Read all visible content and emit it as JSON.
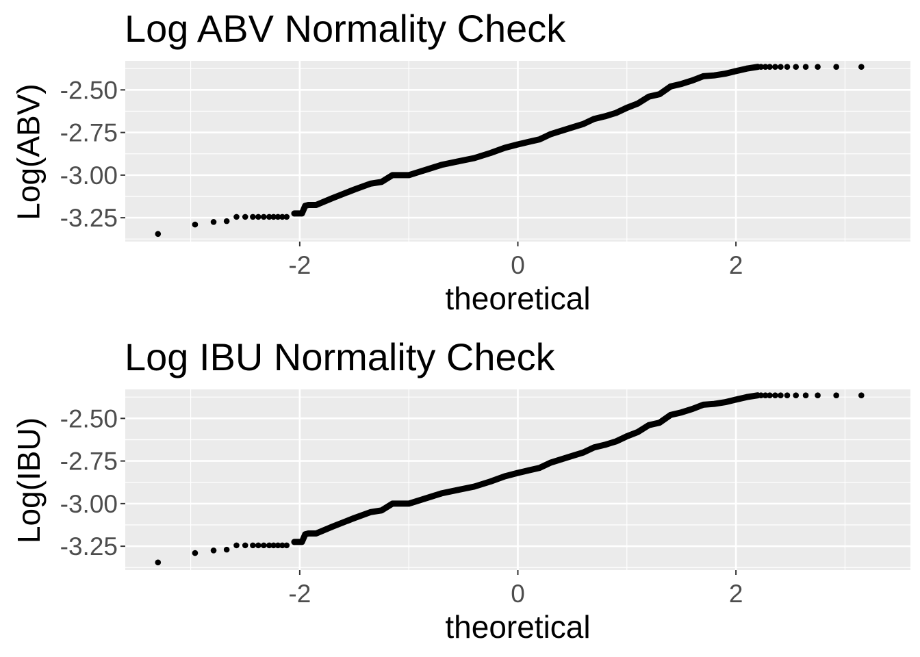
{
  "chart_data": [
    {
      "type": "scatter",
      "title": "Log ABV Normality Check",
      "xlabel": "theoretical",
      "ylabel": "Log(ABV)",
      "xlim": [
        -3.6,
        3.6
      ],
      "ylim": [
        -3.39,
        -2.33
      ],
      "x_major_ticks": [
        -2,
        0,
        2
      ],
      "x_tick_labels": [
        "-2",
        "0",
        "2"
      ],
      "x_minor_ticks": [
        -3,
        -1,
        1,
        3
      ],
      "y_major_ticks": [
        -2.5,
        -2.75,
        -3.0,
        -3.25
      ],
      "y_tick_labels": [
        "-2.50",
        "-2.75",
        "-3.00",
        "-3.25"
      ],
      "y_minor_ticks": [
        -2.375,
        -2.625,
        -2.875,
        -3.125,
        -3.375
      ],
      "grid": true,
      "background": "#ebebeb",
      "point_color": "#000000",
      "series": [
        {
          "x": [
            -3.3,
            -2.96,
            -2.79,
            -2.67,
            -2.58,
            -2.5,
            -2.43,
            -2.38,
            -2.33,
            -2.28,
            -2.24,
            -2.2,
            -2.16,
            -2.12,
            -2.05,
            -1.98,
            -1.95,
            -1.92,
            -1.85,
            -1.7,
            -1.62,
            -1.5,
            -1.35,
            -1.25,
            -1.15,
            -1.0,
            -0.85,
            -0.7,
            -0.55,
            -0.4,
            -0.25,
            -0.12,
            0.0,
            0.1,
            0.2,
            0.3,
            0.4,
            0.5,
            0.6,
            0.7,
            0.8,
            0.9,
            1.0,
            1.1,
            1.2,
            1.3,
            1.4,
            1.5,
            1.6,
            1.7,
            1.8,
            1.9,
            2.0,
            2.1,
            2.2,
            2.23,
            2.27,
            2.31,
            2.36,
            2.41,
            2.47,
            2.55,
            2.64,
            2.75,
            2.92,
            3.15
          ],
          "y": [
            -3.345,
            -3.29,
            -3.275,
            -3.27,
            -3.245,
            -3.245,
            -3.245,
            -3.245,
            -3.245,
            -3.245,
            -3.245,
            -3.245,
            -3.245,
            -3.245,
            -3.225,
            -3.225,
            -3.18,
            -3.175,
            -3.175,
            -3.135,
            -3.115,
            -3.085,
            -3.05,
            -3.04,
            -3.0,
            -3.0,
            -2.97,
            -2.94,
            -2.92,
            -2.9,
            -2.87,
            -2.84,
            -2.82,
            -2.805,
            -2.79,
            -2.76,
            -2.74,
            -2.72,
            -2.7,
            -2.67,
            -2.655,
            -2.635,
            -2.605,
            -2.58,
            -2.54,
            -2.525,
            -2.48,
            -2.465,
            -2.445,
            -2.42,
            -2.415,
            -2.405,
            -2.39,
            -2.375,
            -2.365,
            -2.365,
            -2.365,
            -2.365,
            -2.365,
            -2.365,
            -2.365,
            -2.365,
            -2.365,
            -2.365,
            -2.365,
            -2.365
          ]
        }
      ]
    },
    {
      "type": "scatter",
      "title": "Log IBU Normality Check",
      "xlabel": "theoretical",
      "ylabel": "Log(IBU)",
      "xlim": [
        -3.6,
        3.6
      ],
      "ylim": [
        -3.39,
        -2.33
      ],
      "x_major_ticks": [
        -2,
        0,
        2
      ],
      "x_tick_labels": [
        "-2",
        "0",
        "2"
      ],
      "x_minor_ticks": [
        -3,
        -1,
        1,
        3
      ],
      "y_major_ticks": [
        -2.5,
        -2.75,
        -3.0,
        -3.25
      ],
      "y_tick_labels": [
        "-2.50",
        "-2.75",
        "-3.00",
        "-3.25"
      ],
      "y_minor_ticks": [
        -2.375,
        -2.625,
        -2.875,
        -3.125,
        -3.375
      ],
      "grid": true,
      "background": "#ebebeb",
      "point_color": "#000000",
      "series": [
        {
          "x": [
            -3.3,
            -2.96,
            -2.79,
            -2.67,
            -2.58,
            -2.5,
            -2.43,
            -2.38,
            -2.33,
            -2.28,
            -2.24,
            -2.2,
            -2.16,
            -2.12,
            -2.05,
            -1.98,
            -1.95,
            -1.92,
            -1.85,
            -1.7,
            -1.62,
            -1.5,
            -1.35,
            -1.25,
            -1.15,
            -1.0,
            -0.85,
            -0.7,
            -0.55,
            -0.4,
            -0.25,
            -0.12,
            0.0,
            0.1,
            0.2,
            0.3,
            0.4,
            0.5,
            0.6,
            0.7,
            0.8,
            0.9,
            1.0,
            1.1,
            1.2,
            1.3,
            1.4,
            1.5,
            1.6,
            1.7,
            1.8,
            1.9,
            2.0,
            2.1,
            2.2,
            2.23,
            2.27,
            2.31,
            2.36,
            2.41,
            2.47,
            2.55,
            2.64,
            2.75,
            2.92,
            3.15
          ],
          "y": [
            -3.345,
            -3.29,
            -3.275,
            -3.27,
            -3.245,
            -3.245,
            -3.245,
            -3.245,
            -3.245,
            -3.245,
            -3.245,
            -3.245,
            -3.245,
            -3.245,
            -3.225,
            -3.225,
            -3.18,
            -3.175,
            -3.175,
            -3.135,
            -3.115,
            -3.085,
            -3.05,
            -3.04,
            -3.0,
            -3.0,
            -2.97,
            -2.94,
            -2.92,
            -2.9,
            -2.87,
            -2.84,
            -2.82,
            -2.805,
            -2.79,
            -2.76,
            -2.74,
            -2.72,
            -2.7,
            -2.67,
            -2.655,
            -2.635,
            -2.605,
            -2.58,
            -2.54,
            -2.525,
            -2.48,
            -2.465,
            -2.445,
            -2.42,
            -2.415,
            -2.405,
            -2.39,
            -2.375,
            -2.365,
            -2.365,
            -2.365,
            -2.365,
            -2.365,
            -2.365,
            -2.365,
            -2.365,
            -2.365,
            -2.365,
            -2.365,
            -2.365
          ]
        }
      ]
    }
  ]
}
